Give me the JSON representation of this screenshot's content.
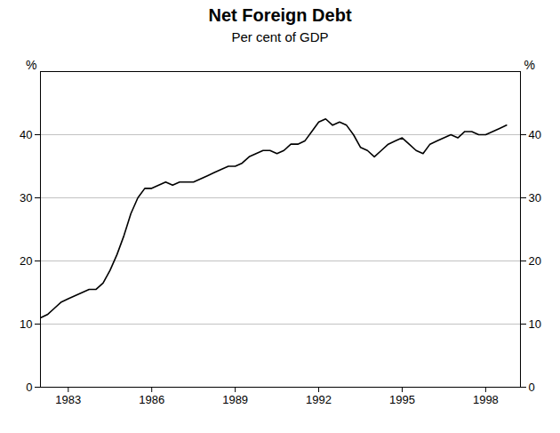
{
  "chart_data": {
    "type": "line",
    "title": "Net Foreign Debt",
    "subtitle": "Per cent of GDP",
    "ylabel": "%",
    "y2label": "%",
    "x": [
      1982.0,
      1982.25,
      1982.5,
      1982.75,
      1983.0,
      1983.25,
      1983.5,
      1983.75,
      1984.0,
      1984.25,
      1984.5,
      1984.75,
      1985.0,
      1985.25,
      1985.5,
      1985.75,
      1986.0,
      1986.25,
      1986.5,
      1986.75,
      1987.0,
      1987.25,
      1987.5,
      1987.75,
      1988.0,
      1988.25,
      1988.5,
      1988.75,
      1989.0,
      1989.25,
      1989.5,
      1989.75,
      1990.0,
      1990.25,
      1990.5,
      1990.75,
      1991.0,
      1991.25,
      1991.5,
      1991.75,
      1992.0,
      1992.25,
      1992.5,
      1992.75,
      1993.0,
      1993.25,
      1993.5,
      1993.75,
      1994.0,
      1994.25,
      1994.5,
      1994.75,
      1995.0,
      1995.25,
      1995.5,
      1995.75,
      1996.0,
      1996.25,
      1996.5,
      1996.75,
      1997.0,
      1997.25,
      1997.5,
      1997.75,
      1998.0,
      1998.25,
      1998.5,
      1998.75
    ],
    "values": [
      11.0,
      11.5,
      12.5,
      13.5,
      14.0,
      14.5,
      15.0,
      15.5,
      15.5,
      16.5,
      18.5,
      21.0,
      24.0,
      27.5,
      30.0,
      31.5,
      31.5,
      32.0,
      32.5,
      32.0,
      32.5,
      32.5,
      32.5,
      33.0,
      33.5,
      34.0,
      34.5,
      35.0,
      35.0,
      35.5,
      36.5,
      37.0,
      37.5,
      37.5,
      37.0,
      37.5,
      38.5,
      38.5,
      39.0,
      40.5,
      42.0,
      42.5,
      41.5,
      42.0,
      41.5,
      40.0,
      38.0,
      37.5,
      36.5,
      37.5,
      38.5,
      39.0,
      39.5,
      38.5,
      37.5,
      37.0,
      38.5,
      39.0,
      39.5,
      40.0,
      39.5,
      40.5,
      40.5,
      40.0,
      40.0,
      40.5,
      41.0,
      41.5
    ],
    "color": "#000000",
    "xlim": [
      1982.0,
      1999.25
    ],
    "ylim": [
      0,
      50
    ],
    "xticks": [
      1983,
      1986,
      1989,
      1992,
      1995,
      1998
    ],
    "yticks": [
      0,
      10,
      20,
      30,
      40
    ],
    "y2lim": [
      0,
      50
    ],
    "y2ticks": [
      0,
      10,
      20,
      30,
      40
    ],
    "grid": true
  }
}
